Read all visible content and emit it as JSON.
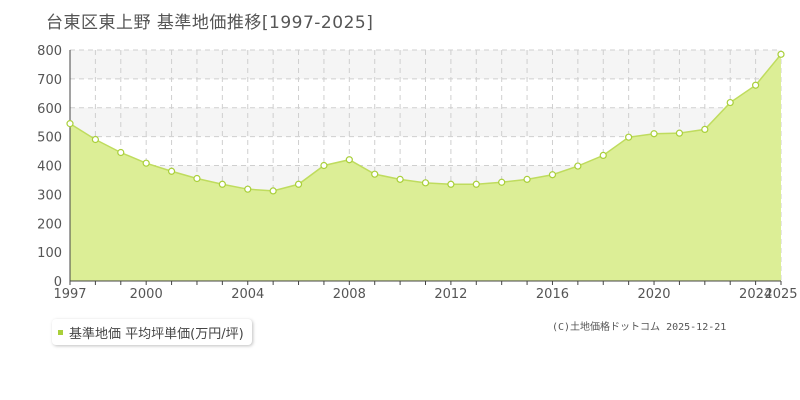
{
  "title": "台東区東上野 基準地価推移[1997-2025]",
  "legend": {
    "label": "基準地価 平均坪単価(万円/坪)"
  },
  "credit": "(C)土地価格ドットコム 2025-12-21",
  "colors": {
    "fill": "#dcee96",
    "line": "#bfdc5e",
    "point": "#a9cf3a",
    "grid": "#cfcfcf",
    "band": "#f5f5f5"
  },
  "chart_data": {
    "type": "area",
    "ylim": [
      0,
      800
    ],
    "xlim": [
      1997,
      2025
    ],
    "yticks": [
      0,
      100,
      200,
      300,
      400,
      500,
      600,
      700,
      800
    ],
    "xticks": [
      1997,
      2000,
      2004,
      2008,
      2012,
      2016,
      2020,
      2024,
      2025
    ],
    "grid": true,
    "series": [
      {
        "name": "基準地価 平均坪単価(万円/坪)",
        "points": [
          {
            "x": 1997,
            "y": 545
          },
          {
            "x": 1998,
            "y": 490
          },
          {
            "x": 1999,
            "y": 445
          },
          {
            "x": 2000,
            "y": 408
          },
          {
            "x": 2001,
            "y": 380
          },
          {
            "x": 2002,
            "y": 355
          },
          {
            "x": 2003,
            "y": 335
          },
          {
            "x": 2004,
            "y": 318
          },
          {
            "x": 2005,
            "y": 312
          },
          {
            "x": 2006,
            "y": 335
          },
          {
            "x": 2007,
            "y": 400
          },
          {
            "x": 2008,
            "y": 420
          },
          {
            "x": 2009,
            "y": 370
          },
          {
            "x": 2010,
            "y": 352
          },
          {
            "x": 2011,
            "y": 340
          },
          {
            "x": 2012,
            "y": 335
          },
          {
            "x": 2013,
            "y": 335
          },
          {
            "x": 2014,
            "y": 342
          },
          {
            "x": 2015,
            "y": 352
          },
          {
            "x": 2016,
            "y": 368
          },
          {
            "x": 2017,
            "y": 398
          },
          {
            "x": 2018,
            "y": 435
          },
          {
            "x": 2019,
            "y": 498
          },
          {
            "x": 2020,
            "y": 510
          },
          {
            "x": 2021,
            "y": 512
          },
          {
            "x": 2022,
            "y": 525
          },
          {
            "x": 2023,
            "y": 618
          },
          {
            "x": 2024,
            "y": 678
          },
          {
            "x": 2025,
            "y": 785
          }
        ]
      }
    ]
  }
}
